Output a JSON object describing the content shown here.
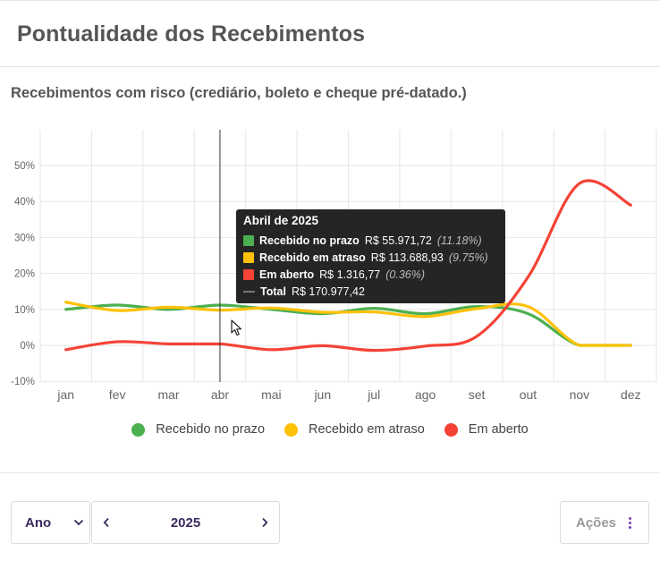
{
  "card": {
    "title": "Pontualidade dos Recebimentos"
  },
  "subtitle": "Recebimentos com risco (crediário, boleto e cheque pré-datado.)",
  "chart_data": {
    "type": "line",
    "categories": [
      "jan",
      "fev",
      "mar",
      "abr",
      "mai",
      "jun",
      "jul",
      "ago",
      "set",
      "out",
      "nov",
      "dez"
    ],
    "y_ticks": [
      "50%",
      "40%",
      "30%",
      "20%",
      "10%",
      "0%",
      "-10%"
    ],
    "ylim": [
      -10,
      55
    ],
    "series": [
      {
        "name": "Recebido no prazo",
        "color": "#4caf50",
        "values": [
          10,
          11.2,
          10,
          11.2,
          10,
          8.8,
          10.3,
          8.8,
          10.8,
          8.8,
          0,
          0
        ]
      },
      {
        "name": "Recebido em atraso",
        "color": "#ffc107",
        "values": [
          12,
          9.7,
          10.6,
          9.8,
          10.4,
          9.2,
          9.3,
          8,
          10.2,
          10.8,
          0,
          0
        ]
      },
      {
        "name": "Em aberto",
        "color": "#f44336",
        "values": [
          -1.2,
          1.0,
          0.4,
          0.4,
          -1.2,
          -0.1,
          -1.4,
          -0.2,
          2.5,
          19,
          45,
          39
        ]
      }
    ],
    "crosshair_category": "abr",
    "legend_position": "bottom",
    "grid": true
  },
  "tooltip": {
    "title": "Abril de 2025",
    "rows": [
      {
        "label": "Recebido no prazo",
        "value": "R$ 55.971,72",
        "pct": "(11.18%)",
        "color": "#4caf50"
      },
      {
        "label": "Recebido em atraso",
        "value": "R$ 113.688,93",
        "pct": "(9.75%)",
        "color": "#ffc107"
      },
      {
        "label": "Em aberto",
        "value": "R$ 1.316,77",
        "pct": "(0.36%)",
        "color": "#f44336"
      }
    ],
    "total_label": "Total",
    "total_value": "R$ 170.977,42"
  },
  "controls": {
    "period_select": "Ano",
    "year": "2025",
    "actions_label": "Ações",
    "prev_icon": "chevron-left-icon",
    "next_icon": "chevron-right-icon"
  }
}
